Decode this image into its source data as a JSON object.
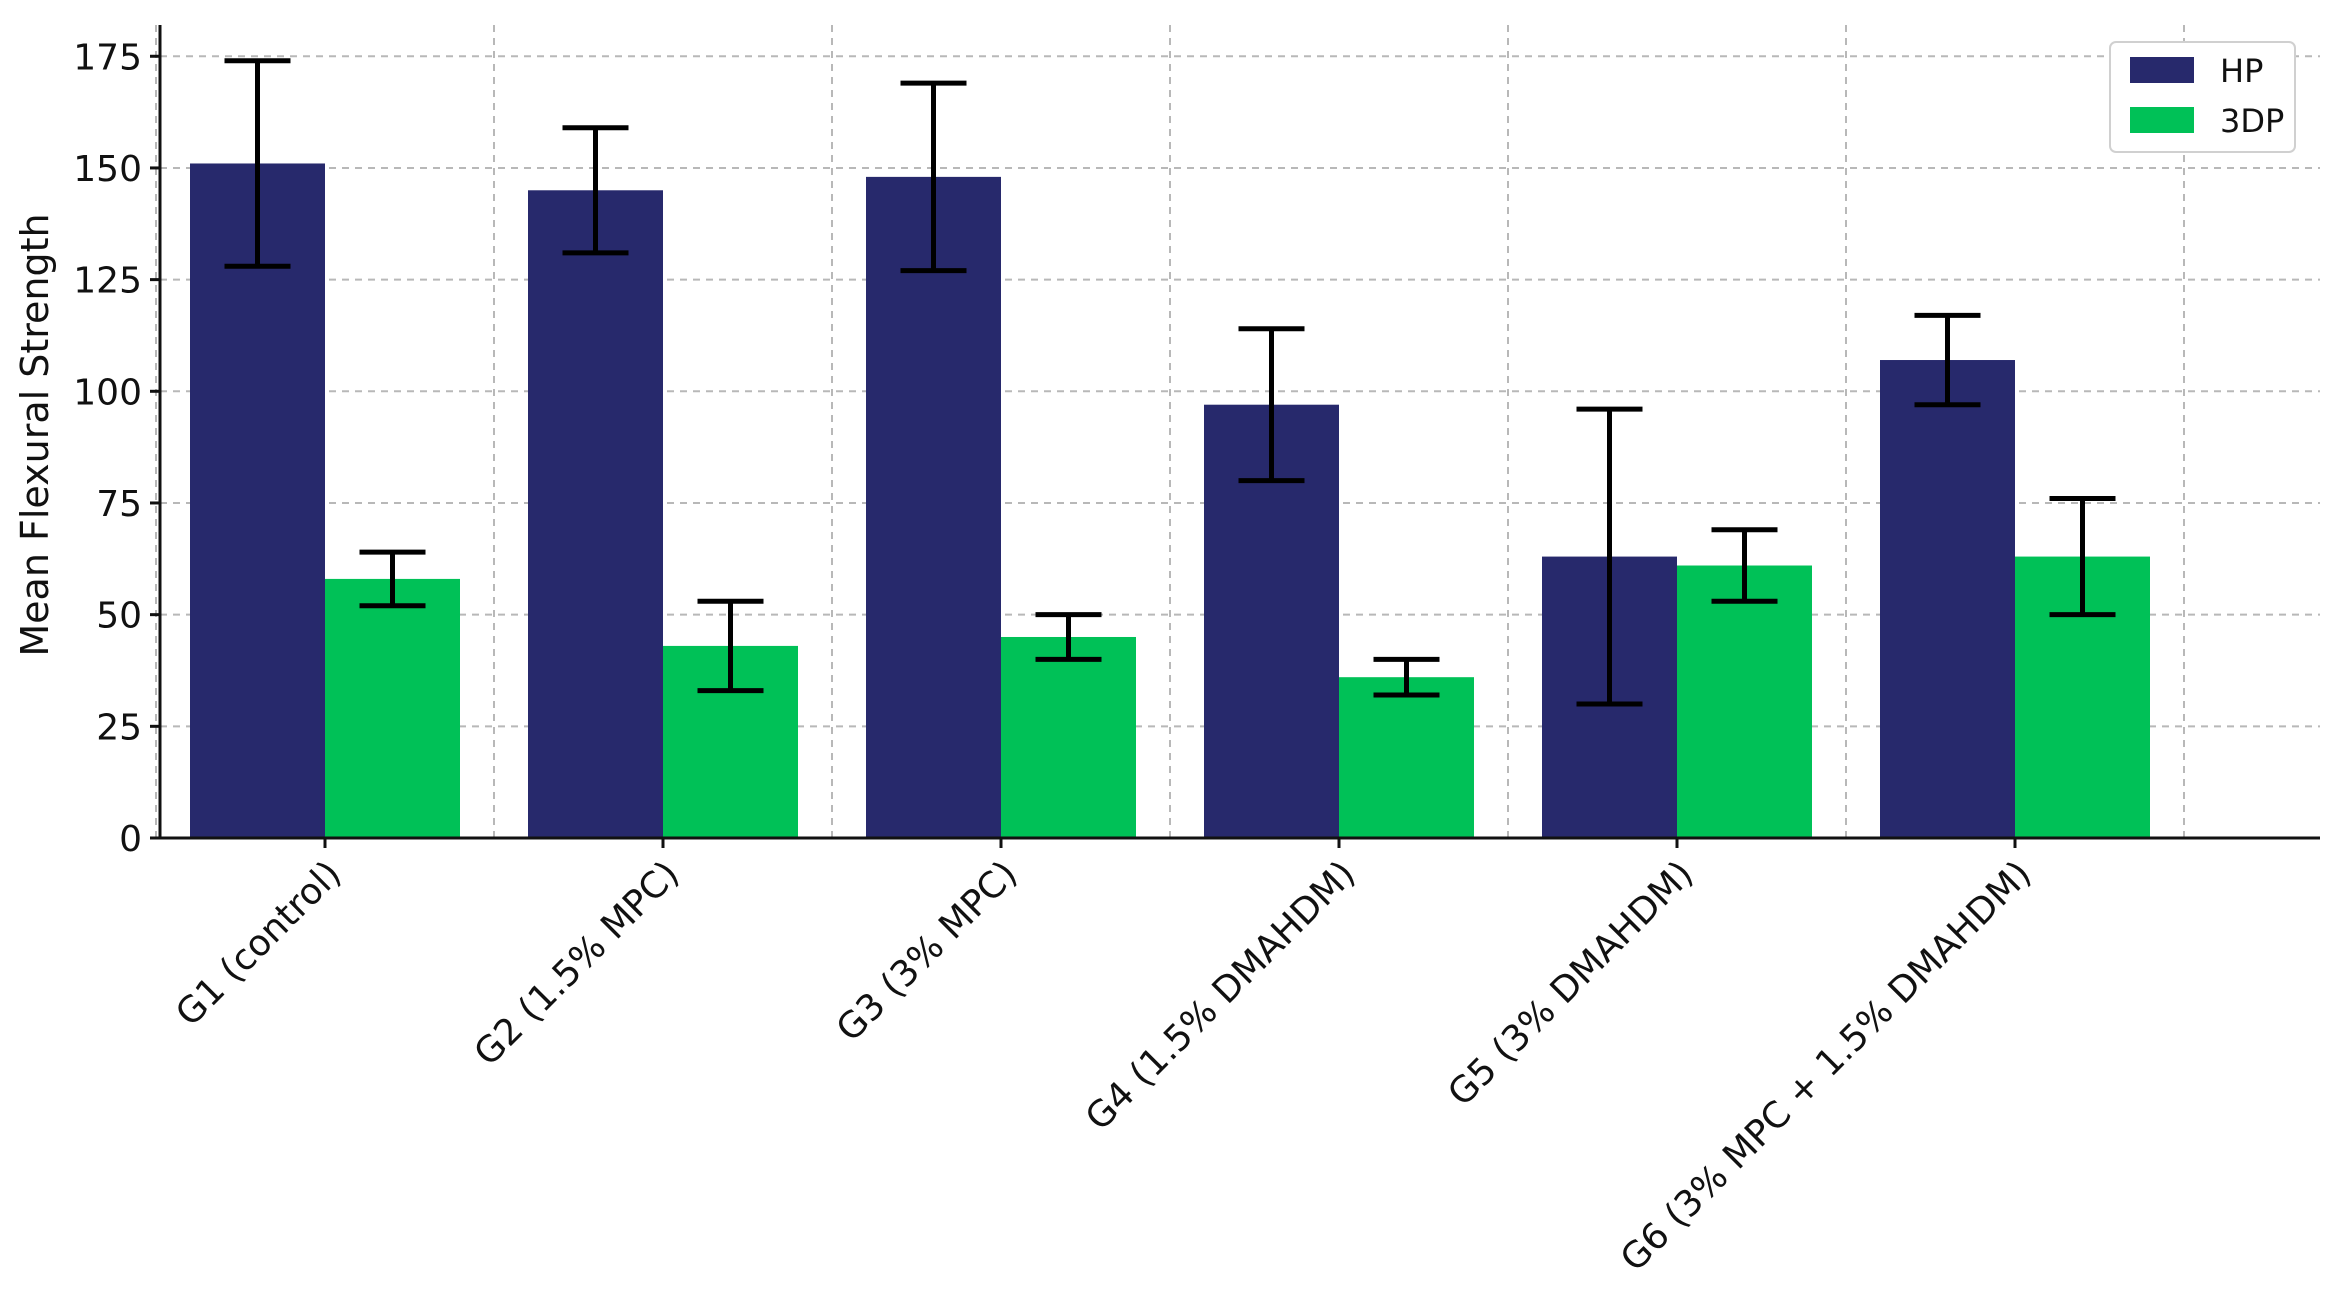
{
  "chart_data": {
    "type": "bar",
    "title": "",
    "xlabel": "",
    "ylabel": "Mean Flexural Strength",
    "ylim": [
      0,
      182
    ],
    "yticks": [
      0,
      25,
      50,
      75,
      100,
      125,
      150,
      175
    ],
    "grid": true,
    "legend_position": "top-right",
    "categories": [
      "G1 (control)",
      "G2 (1.5% MPC)",
      "G3 (3% MPC)",
      "G4 (1.5% DMAHDM)",
      "G5 (3% DMAHDM)",
      "G6 (3% MPC + 1.5% DMAHDM)"
    ],
    "series": [
      {
        "name": "HP",
        "color": "#27296c",
        "values": [
          151,
          145,
          148,
          97,
          63,
          107
        ],
        "errors": [
          23,
          14,
          21,
          17,
          33,
          10
        ]
      },
      {
        "name": "3DP",
        "color": "#00c157",
        "values": [
          58,
          43,
          45,
          36,
          61,
          63
        ],
        "errors": [
          6,
          10,
          5,
          4,
          8,
          13
        ]
      }
    ]
  }
}
